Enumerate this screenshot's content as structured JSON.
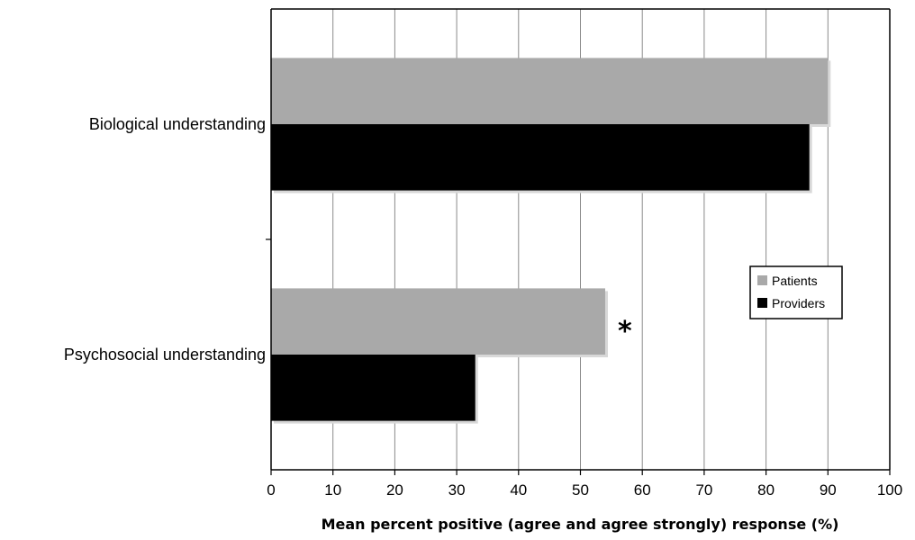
{
  "chart_data": {
    "type": "bar",
    "orientation": "horizontal",
    "categories": [
      "Biological understanding",
      "Psychosocial understanding"
    ],
    "series": [
      {
        "name": "Patients",
        "color": "#a9a9a9",
        "values": [
          90,
          54
        ]
      },
      {
        "name": "Providers",
        "color": "#000000",
        "values": [
          87,
          33
        ]
      }
    ],
    "title": "",
    "xlabel": "Mean percent positive (agree and agree strongly) response (%)",
    "ylabel": "",
    "xlim": [
      0,
      100
    ],
    "xticks": [
      0,
      10,
      20,
      30,
      40,
      50,
      60,
      70,
      80,
      90,
      100
    ],
    "grid": "vertical",
    "legend": "right",
    "annotations": [
      {
        "category": "Psychosocial understanding",
        "series": "Patients",
        "text": "*"
      }
    ]
  }
}
